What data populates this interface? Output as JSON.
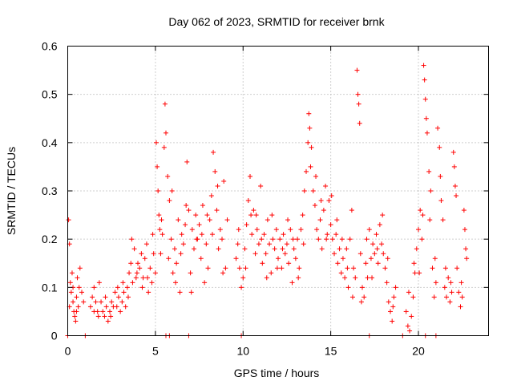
{
  "chart_data": {
    "type": "scatter",
    "title": "Day 062 of 2023, SRMTID for receiver brnk",
    "xlabel": "GPS time / hours",
    "ylabel": "SRMTID / TECUs",
    "xlim": [
      0,
      24
    ],
    "ylim": [
      0,
      0.6
    ],
    "xticks": [
      0,
      5,
      10,
      15,
      20
    ],
    "yticks": [
      0,
      0.1,
      0.2,
      0.3,
      0.4,
      0.5,
      0.6
    ],
    "xtick_labels": [
      "0",
      "5",
      "10",
      "15",
      "20"
    ],
    "ytick_labels": [
      "0",
      "0.1",
      "0.2",
      "0.3",
      "0.4",
      "0.5",
      "0.6"
    ],
    "grid": true,
    "marker": "plus",
    "color": "#ff0000",
    "series": [
      {
        "name": "SRMTID",
        "points": [
          [
            0.05,
            0.24
          ],
          [
            0.1,
            0.19
          ],
          [
            0.15,
            0.11
          ],
          [
            0.2,
            0.09
          ],
          [
            0.25,
            0.13
          ],
          [
            0.3,
            0.07
          ],
          [
            0.35,
            0.05
          ],
          [
            0.4,
            0.04
          ],
          [
            0.45,
            0.03
          ],
          [
            0.5,
            0.08
          ],
          [
            0.55,
            0.12
          ],
          [
            0.6,
            0.06
          ],
          [
            0.65,
            0.1
          ],
          [
            0.7,
            0.14
          ],
          [
            0.8,
            0.09
          ],
          [
            0.9,
            0.07
          ],
          [
            1.3,
            0.06
          ],
          [
            1.4,
            0.08
          ],
          [
            1.5,
            0.1
          ],
          [
            1.6,
            0.07
          ],
          [
            1.7,
            0.05
          ],
          [
            1.8,
            0.11
          ],
          [
            1.9,
            0.07
          ],
          [
            2.0,
            0.05
          ],
          [
            2.1,
            0.04
          ],
          [
            2.2,
            0.06
          ],
          [
            2.3,
            0.03
          ],
          [
            2.4,
            0.05
          ],
          [
            2.5,
            0.07
          ],
          [
            2.6,
            0.06
          ],
          [
            2.7,
            0.09
          ],
          [
            2.8,
            0.06
          ],
          [
            2.9,
            0.08
          ],
          [
            3.0,
            0.05
          ],
          [
            3.1,
            0.07
          ],
          [
            3.2,
            0.09
          ],
          [
            3.3,
            0.06
          ],
          [
            3.4,
            0.1
          ],
          [
            3.5,
            0.13
          ],
          [
            3.6,
            0.15
          ],
          [
            3.7,
            0.11
          ],
          [
            3.8,
            0.18
          ],
          [
            3.9,
            0.12
          ],
          [
            4.0,
            0.15
          ],
          [
            4.1,
            0.14
          ],
          [
            4.2,
            0.17
          ],
          [
            4.3,
            0.12
          ],
          [
            4.4,
            0.16
          ],
          [
            4.5,
            0.19
          ],
          [
            4.6,
            0.09
          ],
          [
            4.7,
            0.14
          ],
          [
            4.8,
            0.11
          ],
          [
            4.9,
            0.17
          ],
          [
            5.0,
            0.13
          ],
          [
            5.05,
            0.4
          ],
          [
            5.1,
            0.35
          ],
          [
            5.15,
            0.3
          ],
          [
            5.2,
            0.25
          ],
          [
            5.25,
            0.22
          ],
          [
            5.3,
            0.17
          ],
          [
            5.4,
            0.21
          ],
          [
            5.5,
            0.39
          ],
          [
            5.55,
            0.48
          ],
          [
            5.6,
            0.42
          ],
          [
            5.7,
            0.33
          ],
          [
            5.8,
            0.28
          ],
          [
            5.9,
            0.2
          ],
          [
            6.0,
            0.13
          ],
          [
            6.1,
            0.18
          ],
          [
            6.2,
            0.15
          ],
          [
            6.3,
            0.24
          ],
          [
            6.4,
            0.09
          ],
          [
            6.5,
            0.21
          ],
          [
            6.6,
            0.19
          ],
          [
            6.7,
            0.23
          ],
          [
            6.8,
            0.36
          ],
          [
            6.9,
            0.26
          ],
          [
            7.0,
            0.13
          ],
          [
            7.1,
            0.22
          ],
          [
            7.2,
            0.18
          ],
          [
            7.3,
            0.25
          ],
          [
            7.4,
            0.2
          ],
          [
            7.5,
            0.23
          ],
          [
            7.6,
            0.16
          ],
          [
            7.7,
            0.27
          ],
          [
            7.8,
            0.11
          ],
          [
            7.9,
            0.19
          ],
          [
            8.0,
            0.14
          ],
          [
            8.1,
            0.24
          ],
          [
            8.2,
            0.29
          ],
          [
            8.3,
            0.38
          ],
          [
            8.4,
            0.34
          ],
          [
            8.5,
            0.26
          ],
          [
            8.6,
            0.18
          ],
          [
            8.7,
            0.22
          ],
          [
            8.8,
            0.2
          ],
          [
            8.9,
            0.32
          ],
          [
            9.0,
            0.14
          ],
          [
            9.1,
            0.24
          ],
          [
            9.6,
            0.16
          ],
          [
            9.7,
            0.19
          ],
          [
            9.8,
            0.14
          ],
          [
            9.9,
            0.1
          ],
          [
            10.0,
            0.12
          ],
          [
            10.1,
            0.18
          ],
          [
            10.2,
            0.23
          ],
          [
            10.3,
            0.28
          ],
          [
            10.4,
            0.33
          ],
          [
            10.5,
            0.21
          ],
          [
            10.6,
            0.26
          ],
          [
            10.7,
            0.17
          ],
          [
            10.8,
            0.22
          ],
          [
            10.9,
            0.19
          ],
          [
            11.0,
            0.31
          ],
          [
            11.1,
            0.15
          ],
          [
            11.2,
            0.21
          ],
          [
            11.3,
            0.17
          ],
          [
            11.4,
            0.24
          ],
          [
            11.5,
            0.19
          ],
          [
            11.6,
            0.13
          ],
          [
            11.7,
            0.2
          ],
          [
            11.8,
            0.18
          ],
          [
            11.9,
            0.22
          ],
          [
            12.0,
            0.16
          ],
          [
            12.1,
            0.2
          ],
          [
            12.2,
            0.14
          ],
          [
            12.3,
            0.21
          ],
          [
            12.4,
            0.17
          ],
          [
            12.5,
            0.19
          ],
          [
            12.6,
            0.15
          ],
          [
            12.7,
            0.22
          ],
          [
            12.8,
            0.11
          ],
          [
            12.9,
            0.18
          ],
          [
            13.0,
            0.16
          ],
          [
            13.1,
            0.2
          ],
          [
            13.2,
            0.14
          ],
          [
            13.3,
            0.22
          ],
          [
            13.4,
            0.25
          ],
          [
            13.5,
            0.3
          ],
          [
            13.6,
            0.34
          ],
          [
            13.7,
            0.4
          ],
          [
            13.75,
            0.46
          ],
          [
            13.8,
            0.43
          ],
          [
            13.9,
            0.39
          ],
          [
            14.0,
            0.3
          ],
          [
            14.1,
            0.27
          ],
          [
            14.2,
            0.22
          ],
          [
            14.3,
            0.2
          ],
          [
            14.4,
            0.24
          ],
          [
            14.5,
            0.18
          ],
          [
            14.6,
            0.26
          ],
          [
            14.7,
            0.31
          ],
          [
            14.8,
            0.21
          ],
          [
            14.9,
            0.28
          ],
          [
            15.0,
            0.23
          ],
          [
            15.1,
            0.2
          ],
          [
            15.2,
            0.17
          ],
          [
            15.3,
            0.21
          ],
          [
            15.4,
            0.15
          ],
          [
            15.5,
            0.18
          ],
          [
            15.6,
            0.13
          ],
          [
            15.7,
            0.16
          ],
          [
            15.8,
            0.12
          ],
          [
            15.9,
            0.18
          ],
          [
            16.0,
            0.1
          ],
          [
            16.1,
            0.2
          ],
          [
            16.2,
            0.26
          ],
          [
            16.3,
            0.14
          ],
          [
            16.4,
            0.12
          ],
          [
            16.5,
            0.55
          ],
          [
            16.55,
            0.5
          ],
          [
            16.6,
            0.48
          ],
          [
            16.65,
            0.44
          ],
          [
            16.7,
            0.17
          ],
          [
            16.8,
            0.1
          ],
          [
            16.9,
            0.08
          ],
          [
            17.0,
            0.15
          ],
          [
            17.1,
            0.12
          ],
          [
            17.2,
            0.22
          ],
          [
            17.3,
            0.16
          ],
          [
            17.4,
            0.19
          ],
          [
            17.5,
            0.17
          ],
          [
            17.6,
            0.21
          ],
          [
            17.7,
            0.15
          ],
          [
            17.8,
            0.23
          ],
          [
            17.9,
            0.19
          ],
          [
            18.0,
            0.17
          ],
          [
            18.1,
            0.14
          ],
          [
            18.2,
            0.11
          ],
          [
            18.3,
            0.07
          ],
          [
            18.4,
            0.05
          ],
          [
            18.5,
            0.03
          ],
          [
            18.6,
            0.08
          ],
          [
            18.7,
            0.1
          ],
          [
            19.3,
            0.05
          ],
          [
            19.4,
            0.02
          ],
          [
            19.5,
            0.01
          ],
          [
            19.6,
            0.04
          ],
          [
            19.7,
            0.08
          ],
          [
            19.8,
            0.13
          ],
          [
            19.9,
            0.18
          ],
          [
            20.0,
            0.22
          ],
          [
            20.1,
            0.26
          ],
          [
            20.2,
            0.2
          ],
          [
            20.3,
            0.56
          ],
          [
            20.35,
            0.53
          ],
          [
            20.4,
            0.49
          ],
          [
            20.45,
            0.45
          ],
          [
            20.5,
            0.42
          ],
          [
            20.6,
            0.34
          ],
          [
            20.7,
            0.3
          ],
          [
            20.8,
            0.14
          ],
          [
            20.9,
            0.08
          ],
          [
            21.0,
            0.11
          ],
          [
            21.1,
            0.43
          ],
          [
            21.2,
            0.39
          ],
          [
            21.3,
            0.28
          ],
          [
            21.4,
            0.24
          ],
          [
            21.5,
            0.1
          ],
          [
            21.6,
            0.08
          ],
          [
            21.7,
            0.12
          ],
          [
            21.8,
            0.07
          ],
          [
            21.9,
            0.09
          ],
          [
            22.0,
            0.38
          ],
          [
            22.05,
            0.35
          ],
          [
            22.1,
            0.31
          ],
          [
            22.2,
            0.14
          ],
          [
            22.3,
            0.09
          ],
          [
            22.4,
            0.06
          ],
          [
            22.5,
            0.08
          ],
          [
            22.6,
            0.26
          ],
          [
            22.65,
            0.22
          ],
          [
            22.7,
            0.18
          ],
          [
            0.1,
            0.06
          ],
          [
            0.3,
            0.1
          ],
          [
            0.5,
            0.05
          ],
          [
            1.5,
            0.05
          ],
          [
            1.75,
            0.04
          ],
          [
            2.15,
            0.08
          ],
          [
            2.45,
            0.04
          ],
          [
            2.85,
            0.1
          ],
          [
            3.15,
            0.11
          ],
          [
            3.45,
            0.08
          ],
          [
            3.65,
            0.2
          ],
          [
            3.95,
            0.13
          ],
          [
            4.25,
            0.1
          ],
          [
            4.55,
            0.12
          ],
          [
            4.85,
            0.21
          ],
          [
            5.35,
            0.24
          ],
          [
            5.75,
            0.16
          ],
          [
            5.95,
            0.3
          ],
          [
            6.15,
            0.11
          ],
          [
            6.45,
            0.17
          ],
          [
            6.75,
            0.27
          ],
          [
            7.05,
            0.09
          ],
          [
            7.35,
            0.2
          ],
          [
            7.65,
            0.21
          ],
          [
            7.95,
            0.25
          ],
          [
            8.25,
            0.21
          ],
          [
            8.55,
            0.31
          ],
          [
            8.85,
            0.13
          ],
          [
            9.75,
            0.22
          ],
          [
            10.15,
            0.14
          ],
          [
            10.45,
            0.25
          ],
          [
            10.75,
            0.25
          ],
          [
            11.05,
            0.2
          ],
          [
            11.35,
            0.12
          ],
          [
            11.65,
            0.25
          ],
          [
            11.95,
            0.14
          ],
          [
            12.25,
            0.18
          ],
          [
            12.55,
            0.24
          ],
          [
            12.85,
            0.2
          ],
          [
            13.15,
            0.12
          ],
          [
            13.45,
            0.19
          ],
          [
            13.85,
            0.35
          ],
          [
            14.15,
            0.33
          ],
          [
            14.45,
            0.28
          ],
          [
            14.75,
            0.2
          ],
          [
            15.05,
            0.29
          ],
          [
            15.35,
            0.24
          ],
          [
            15.65,
            0.2
          ],
          [
            15.95,
            0.14
          ],
          [
            16.25,
            0.08
          ],
          [
            16.75,
            0.07
          ],
          [
            17.05,
            0.2
          ],
          [
            17.35,
            0.12
          ],
          [
            17.65,
            0.18
          ],
          [
            17.95,
            0.25
          ],
          [
            18.25,
            0.16
          ],
          [
            18.55,
            0.06
          ],
          [
            19.45,
            0.09
          ],
          [
            19.75,
            0.15
          ],
          [
            20.05,
            0.13
          ],
          [
            20.25,
            0.25
          ],
          [
            20.65,
            0.24
          ],
          [
            20.95,
            0.16
          ],
          [
            21.25,
            0.33
          ],
          [
            21.55,
            0.14
          ],
          [
            21.85,
            0.11
          ],
          [
            22.15,
            0.29
          ],
          [
            22.45,
            0.11
          ],
          [
            22.75,
            0.16
          ],
          [
            5.6,
            0.0
          ],
          [
            5.8,
            0.0
          ],
          [
            6.9,
            0.0
          ],
          [
            9.9,
            0.0
          ],
          [
            17.2,
            0.0
          ],
          [
            19.1,
            0.0
          ],
          [
            20.4,
            0.0
          ],
          [
            21.0,
            0.0
          ],
          [
            1.0,
            0.0
          ],
          [
            0.0,
            0.0
          ]
        ]
      }
    ]
  }
}
